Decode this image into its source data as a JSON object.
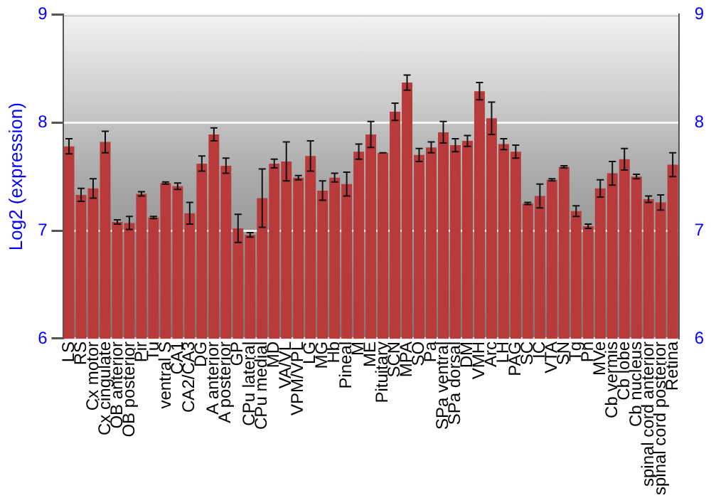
{
  "chart_data": {
    "type": "bar",
    "ylabel": "Log2 (expression)",
    "categories": [
      "LS",
      "RS",
      "Cx motor",
      "Cx cingulate",
      "OB anterior",
      "OB posterior",
      "Pir",
      "Tu",
      "ventral S",
      "CA1",
      "CA2/CA3",
      "DG",
      "A anterior",
      "A posterior",
      "GP",
      "CPu lateral",
      "CPu medial",
      "MD",
      "VA/VL",
      "VPM/VPL",
      "LG",
      "MG",
      "Hb",
      "Pineal",
      "M",
      "ME",
      "Pituitary",
      "SCN",
      "MPA",
      "SO",
      "Pa",
      "SPa ventral",
      "SPa dorsal",
      "DM",
      "VMH",
      "Arc",
      "LH",
      "PAG",
      "SC",
      "IC",
      "VTA",
      "SN",
      "Tg",
      "Pn",
      "MVe",
      "Cb vermis",
      "Cb lobe",
      "Cb nucleus",
      "spinal cord anterior",
      "spinal cord posterior",
      "Retina"
    ],
    "values": [
      7.78,
      7.33,
      7.39,
      7.82,
      7.08,
      7.07,
      7.34,
      7.12,
      7.44,
      7.41,
      7.16,
      7.62,
      7.89,
      7.6,
      7.02,
      6.96,
      7.3,
      7.62,
      7.64,
      7.49,
      7.69,
      7.37,
      7.49,
      7.43,
      7.73,
      7.89,
      7.72,
      8.1,
      8.37,
      7.7,
      7.77,
      7.91,
      7.79,
      7.83,
      8.29,
      8.04,
      7.8,
      7.73,
      7.25,
      7.32,
      7.47,
      7.59,
      7.18,
      7.04,
      7.39,
      7.53,
      7.66,
      7.5,
      7.29,
      7.26,
      7.61
    ],
    "errors": [
      0.07,
      0.06,
      0.09,
      0.1,
      0.02,
      0.06,
      0.02,
      0.01,
      0.01,
      0.03,
      0.1,
      0.07,
      0.06,
      0.07,
      0.13,
      0.02,
      0.27,
      0.04,
      0.18,
      0.02,
      0.14,
      0.09,
      0.04,
      0.11,
      0.07,
      0.12,
      0,
      0.08,
      0.07,
      0.06,
      0.05,
      0.1,
      0.06,
      0.05,
      0.08,
      0.15,
      0.05,
      0.06,
      0.01,
      0.11,
      0.01,
      0.01,
      0.05,
      0.02,
      0.08,
      0.11,
      0.1,
      0.02,
      0.03,
      0.07,
      0.11
    ],
    "color": "#b83a3a",
    "ylim": [
      6,
      9
    ],
    "yticks": [
      6,
      7,
      8,
      9
    ],
    "y2lim": [
      6,
      9
    ],
    "y2ticks": [
      6,
      7,
      8,
      9
    ],
    "grid": "y",
    "legend": false
  }
}
